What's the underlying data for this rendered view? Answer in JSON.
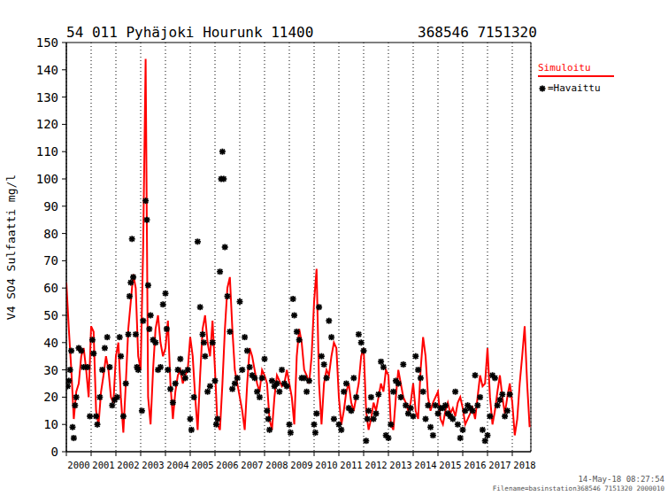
{
  "chart_data": {
    "type": "line",
    "title": "54 011 Pyhäjoki Hourunk 11400",
    "subtitle": "368546 7151320",
    "y_label": "V4 SO4 Sulfaatti mg/l",
    "annotations": [
      "14-May-18 08:27:54",
      "Filename=basinstation368546 7151320 2000010"
    ],
    "legend": "right",
    "grid": true,
    "xlim": [
      2000,
      2018.75
    ],
    "xticks": [
      2000,
      2001,
      2002,
      2003,
      2004,
      2005,
      2006,
      2007,
      2008,
      2009,
      2010,
      2011,
      2012,
      2013,
      2014,
      2015,
      2016,
      2017,
      2018
    ],
    "ylim": [
      0,
      150
    ],
    "yticks": [
      0,
      10,
      20,
      30,
      40,
      50,
      60,
      70,
      80,
      90,
      100,
      110,
      120,
      130,
      140,
      150
    ],
    "series": [
      {
        "name": "Simuloitu",
        "type": "line",
        "color": "#ff0000",
        "line_style": "solid",
        "x": [
          2000.0,
          2000.1,
          2000.2,
          2000.3,
          2000.4,
          2000.5,
          2000.6,
          2000.7,
          2000.8,
          2000.9,
          2001.0,
          2001.1,
          2001.2,
          2001.3,
          2001.4,
          2001.5,
          2001.6,
          2001.7,
          2001.8,
          2001.9,
          2002.0,
          2002.1,
          2002.2,
          2002.3,
          2002.4,
          2002.5,
          2002.6,
          2002.7,
          2002.8,
          2002.9,
          2003.0,
          2003.1,
          2003.2,
          2003.3,
          2003.4,
          2003.5,
          2003.6,
          2003.7,
          2003.8,
          2003.9,
          2004.0,
          2004.1,
          2004.2,
          2004.3,
          2004.4,
          2004.5,
          2004.6,
          2004.7,
          2004.8,
          2004.9,
          2005.0,
          2005.1,
          2005.2,
          2005.3,
          2005.4,
          2005.5,
          2005.6,
          2005.7,
          2005.8,
          2005.9,
          2006.0,
          2006.1,
          2006.2,
          2006.3,
          2006.4,
          2006.5,
          2006.6,
          2006.7,
          2006.8,
          2006.9,
          2007.0,
          2007.1,
          2007.2,
          2007.3,
          2007.4,
          2007.5,
          2007.6,
          2007.7,
          2007.8,
          2007.9,
          2008.0,
          2008.1,
          2008.2,
          2008.3,
          2008.4,
          2008.5,
          2008.6,
          2008.7,
          2008.8,
          2008.9,
          2009.0,
          2009.1,
          2009.2,
          2009.3,
          2009.4,
          2009.5,
          2009.6,
          2009.7,
          2009.8,
          2009.9,
          2010.0,
          2010.1,
          2010.2,
          2010.3,
          2010.4,
          2010.5,
          2010.6,
          2010.7,
          2010.8,
          2010.9,
          2011.0,
          2011.1,
          2011.2,
          2011.3,
          2011.4,
          2011.5,
          2011.6,
          2011.7,
          2011.8,
          2011.9,
          2012.0,
          2012.1,
          2012.2,
          2012.3,
          2012.4,
          2012.5,
          2012.6,
          2012.7,
          2012.8,
          2012.9,
          2013.0,
          2013.1,
          2013.2,
          2013.3,
          2013.4,
          2013.5,
          2013.6,
          2013.7,
          2013.8,
          2013.9,
          2014.0,
          2014.1,
          2014.2,
          2014.3,
          2014.4,
          2014.5,
          2014.6,
          2014.7,
          2014.8,
          2014.9,
          2015.0,
          2015.1,
          2015.2,
          2015.3,
          2015.4,
          2015.5,
          2015.6,
          2015.7,
          2015.8,
          2015.9,
          2016.0,
          2016.1,
          2016.2,
          2016.3,
          2016.4,
          2016.5,
          2016.6,
          2016.7,
          2016.8,
          2016.9,
          2017.0,
          2017.1,
          2017.2,
          2017.3,
          2017.4,
          2017.5,
          2017.6,
          2017.7,
          2017.8,
          2017.9,
          2018.0,
          2018.1,
          2018.2,
          2018.3,
          2018.4,
          2018.5,
          2018.6,
          2018.7
        ],
        "values": [
          62,
          45,
          30,
          12,
          22,
          25,
          35,
          38,
          30,
          20,
          46,
          44,
          15,
          10,
          22,
          28,
          35,
          30,
          20,
          18,
          35,
          40,
          20,
          7,
          25,
          45,
          55,
          65,
          60,
          35,
          30,
          75,
          144,
          20,
          10,
          30,
          45,
          50,
          40,
          35,
          38,
          48,
          25,
          12,
          22,
          28,
          30,
          25,
          28,
          30,
          42,
          35,
          20,
          8,
          28,
          45,
          50,
          40,
          35,
          48,
          30,
          10,
          8,
          25,
          45,
          60,
          64,
          45,
          30,
          25,
          20,
          15,
          8,
          25,
          38,
          35,
          30,
          25,
          22,
          30,
          28,
          25,
          12,
          8,
          20,
          28,
          26,
          24,
          25,
          30,
          25,
          20,
          10,
          35,
          45,
          40,
          30,
          28,
          25,
          35,
          55,
          67,
          25,
          10,
          25,
          30,
          28,
          35,
          40,
          38,
          20,
          10,
          15,
          22,
          25,
          18,
          15,
          20,
          25,
          35,
          38,
          15,
          8,
          12,
          18,
          15,
          20,
          25,
          22,
          30,
          28,
          10,
          8,
          20,
          30,
          25,
          20,
          18,
          15,
          18,
          25,
          15,
          12,
          30,
          42,
          35,
          20,
          15,
          18,
          20,
          22,
          12,
          10,
          15,
          18,
          14,
          16,
          13,
          18,
          20,
          16,
          10,
          12,
          14,
          16,
          12,
          20,
          28,
          24,
          25,
          38,
          20,
          10,
          15,
          22,
          28,
          20,
          14,
          20,
          25,
          18,
          6,
          12,
          25,
          35,
          46,
          25,
          9
        ]
      },
      {
        "name": "=Havaittu",
        "type": "scatter",
        "color": "#000000",
        "marker": "asterisk",
        "x": [
          2000.05,
          2000.1,
          2000.15,
          2000.2,
          2000.25,
          2000.3,
          2000.35,
          2000.4,
          2000.5,
          2000.6,
          2000.7,
          2000.85,
          2000.95,
          2001.05,
          2001.1,
          2001.2,
          2001.25,
          2001.35,
          2001.45,
          2001.55,
          2001.65,
          2001.75,
          2001.85,
          2001.95,
          2002.05,
          2002.15,
          2002.2,
          2002.3,
          2002.4,
          2002.5,
          2002.55,
          2002.6,
          2002.65,
          2002.7,
          2002.8,
          2002.85,
          2002.9,
          2003.05,
          2003.1,
          2003.2,
          2003.25,
          2003.3,
          2003.35,
          2003.4,
          2003.5,
          2003.6,
          2003.7,
          2003.8,
          2003.9,
          2004.0,
          2004.05,
          2004.1,
          2004.2,
          2004.3,
          2004.4,
          2004.5,
          2004.6,
          2004.7,
          2004.8,
          2004.9,
          2005.0,
          2005.05,
          2005.15,
          2005.3,
          2005.4,
          2005.5,
          2005.55,
          2005.6,
          2005.7,
          2005.8,
          2005.9,
          2006.0,
          2006.05,
          2006.1,
          2006.2,
          2006.25,
          2006.3,
          2006.35,
          2006.4,
          2006.5,
          2006.6,
          2006.7,
          2006.8,
          2006.9,
          2007.0,
          2007.1,
          2007.2,
          2007.3,
          2007.4,
          2007.5,
          2007.6,
          2007.7,
          2007.8,
          2007.9,
          2008.0,
          2008.1,
          2008.15,
          2008.2,
          2008.3,
          2008.4,
          2008.5,
          2008.6,
          2008.7,
          2008.8,
          2008.9,
          2009.0,
          2009.05,
          2009.15,
          2009.2,
          2009.3,
          2009.4,
          2009.5,
          2009.6,
          2009.7,
          2009.8,
          2010.0,
          2010.05,
          2010.1,
          2010.2,
          2010.3,
          2010.4,
          2010.5,
          2010.6,
          2010.7,
          2010.8,
          2011.0,
          2011.1,
          2011.2,
          2011.3,
          2011.4,
          2011.5,
          2011.6,
          2011.7,
          2011.8,
          2011.9,
          2012.0,
          2012.1,
          2012.15,
          2012.2,
          2012.3,
          2012.4,
          2012.5,
          2012.6,
          2012.7,
          2012.8,
          2012.9,
          2013.0,
          2013.1,
          2013.2,
          2013.3,
          2013.4,
          2013.5,
          2013.6,
          2013.7,
          2013.8,
          2013.9,
          2014.0,
          2014.1,
          2014.2,
          2014.3,
          2014.4,
          2014.5,
          2014.6,
          2014.7,
          2014.8,
          2014.9,
          2015.0,
          2015.1,
          2015.2,
          2015.3,
          2015.4,
          2015.5,
          2015.6,
          2015.7,
          2015.8,
          2015.9,
          2016.0,
          2016.1,
          2016.2,
          2016.3,
          2016.4,
          2016.5,
          2016.6,
          2016.7,
          2016.8,
          2016.9,
          2017.0,
          2017.1,
          2017.2,
          2017.3,
          2017.4,
          2017.5,
          2017.6,
          2017.7,
          2017.8,
          2017.9
        ],
        "values": [
          24,
          26,
          30,
          37,
          9,
          5,
          17,
          20,
          38,
          37,
          31,
          31,
          13,
          41,
          36,
          13,
          10,
          20,
          30,
          38,
          42,
          31,
          17,
          19,
          20,
          42,
          35,
          13,
          25,
          43,
          57,
          62,
          78,
          64,
          43,
          31,
          30,
          15,
          48,
          92,
          85,
          61,
          45,
          50,
          41,
          40,
          30,
          31,
          54,
          58,
          45,
          30,
          23,
          18,
          25,
          30,
          34,
          29,
          27,
          30,
          12,
          8,
          20,
          77,
          53,
          43,
          40,
          35,
          22,
          24,
          40,
          26,
          10,
          12,
          66,
          100,
          110,
          100,
          75,
          57,
          44,
          23,
          25,
          27,
          55,
          30,
          42,
          37,
          31,
          28,
          27,
          22,
          20,
          27,
          34,
          15,
          12,
          8,
          26,
          24,
          25,
          22,
          30,
          25,
          24,
          10,
          7,
          56,
          50,
          44,
          41,
          27,
          27,
          22,
          26,
          10,
          7,
          14,
          53,
          35,
          32,
          27,
          48,
          42,
          12,
          10,
          8,
          22,
          25,
          16,
          15,
          27,
          20,
          43,
          40,
          37,
          4,
          12,
          15,
          20,
          12,
          14,
          21,
          33,
          31,
          6,
          5,
          10,
          22,
          26,
          25,
          20,
          32,
          17,
          14,
          16,
          13,
          35,
          30,
          27,
          22,
          12,
          17,
          9,
          6,
          17,
          14,
          16,
          16,
          17,
          14,
          13,
          12,
          22,
          10,
          5,
          8,
          15,
          17,
          16,
          15,
          28,
          17,
          20,
          8,
          4,
          6,
          13,
          28,
          27,
          17,
          19,
          21,
          13,
          15,
          21
        ]
      }
    ]
  }
}
